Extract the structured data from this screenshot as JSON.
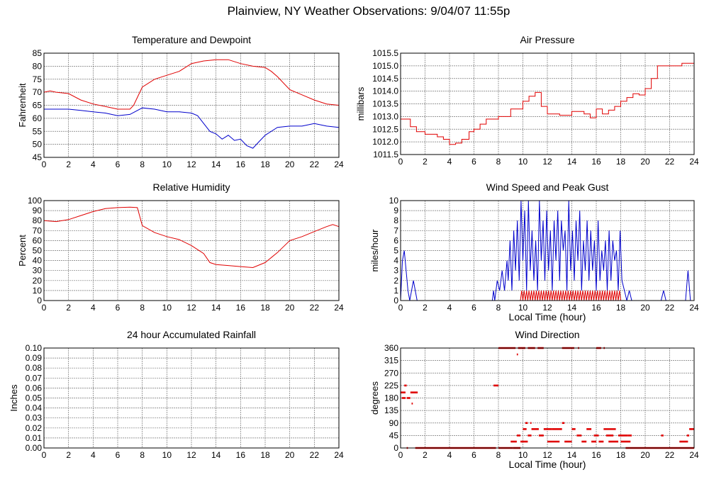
{
  "page": {
    "title": "Plainview, NY Weather Observations: 9/04/07 11:55p"
  },
  "colors": {
    "red": "#e00000",
    "blue": "#0000cc",
    "grid": "#777777"
  },
  "chart_data": [
    {
      "id": "temp",
      "type": "line",
      "title": "Temperature and Dewpoint",
      "xlabel": "",
      "ylabel": "Fahrenheit",
      "xlim": [
        0,
        24
      ],
      "ylim": [
        45,
        85
      ],
      "xticks": [
        0,
        2,
        4,
        6,
        8,
        10,
        12,
        14,
        16,
        18,
        20,
        22,
        24
      ],
      "yticks": [
        45,
        50,
        55,
        60,
        65,
        70,
        75,
        80,
        85
      ],
      "grid": true,
      "series": [
        {
          "color": "#e00000",
          "x": [
            0,
            0.5,
            1,
            2,
            3,
            4,
            5,
            6,
            7,
            7.3,
            7.6,
            8,
            9,
            10,
            11,
            12,
            13,
            14,
            15,
            16,
            17,
            18,
            18.5,
            19,
            20,
            21,
            22,
            23,
            24
          ],
          "y": [
            70,
            70.5,
            70,
            69.5,
            67,
            65.5,
            64.5,
            63.5,
            63.5,
            65,
            68,
            72,
            75,
            76.5,
            78,
            81,
            82,
            82.5,
            82.5,
            81,
            80,
            79.5,
            78,
            76,
            71,
            69,
            67,
            65.5,
            65
          ]
        },
        {
          "color": "#0000cc",
          "x": [
            0,
            1,
            2,
            3,
            4,
            5,
            6,
            7,
            8,
            9,
            10,
            11,
            12,
            12.5,
            13,
            13.5,
            14,
            14.5,
            15,
            15.5,
            16,
            16.5,
            17,
            17.5,
            18,
            19,
            20,
            21,
            22,
            23,
            24
          ],
          "y": [
            63.5,
            63.5,
            63.5,
            63,
            62.5,
            62,
            61,
            61.5,
            64,
            63.5,
            62.5,
            62.5,
            62,
            61,
            58,
            55,
            54,
            52,
            53.5,
            51.5,
            52,
            49.5,
            48.5,
            51,
            53.5,
            56.5,
            57,
            57,
            58,
            57,
            56.5
          ]
        }
      ]
    },
    {
      "id": "pressure",
      "type": "line",
      "title": "Air Pressure",
      "xlabel": "",
      "ylabel": "millibars",
      "xlim": [
        0,
        24
      ],
      "ylim": [
        1011.5,
        1015.5
      ],
      "xticks": [
        0,
        2,
        4,
        6,
        8,
        10,
        12,
        14,
        16,
        18,
        20,
        22,
        24
      ],
      "yticks": [
        "1011.5",
        "1012.0",
        "1012.5",
        "1013.0",
        "1013.5",
        "1014.0",
        "1014.5",
        "1015.0",
        "1015.5"
      ],
      "grid": true,
      "series": [
        {
          "color": "#e00000",
          "step": true,
          "x": [
            0,
            0.8,
            1.3,
            2,
            3,
            3.5,
            4,
            4.5,
            5,
            5.6,
            6,
            6.5,
            7,
            8,
            9,
            10,
            10.5,
            11,
            11.5,
            12,
            13,
            14,
            15,
            15.5,
            16,
            16.5,
            17,
            17.5,
            18,
            18.5,
            19,
            19.5,
            20,
            20.5,
            21,
            21.7,
            22,
            23,
            24
          ],
          "y": [
            1012.9,
            1012.6,
            1012.4,
            1012.3,
            1012.2,
            1012.1,
            1011.9,
            1011.95,
            1012.1,
            1012.4,
            1012.5,
            1012.7,
            1012.9,
            1013.0,
            1013.3,
            1013.6,
            1013.8,
            1013.95,
            1013.4,
            1013.1,
            1013.05,
            1013.2,
            1013.1,
            1012.95,
            1013.3,
            1013.1,
            1013.25,
            1013.4,
            1013.6,
            1013.75,
            1013.9,
            1013.85,
            1014.1,
            1014.5,
            1015.0,
            1015.0,
            1015.0,
            1015.1,
            1015.2
          ]
        }
      ]
    },
    {
      "id": "humidity",
      "type": "line",
      "title": "Relative Humidity",
      "xlabel": "",
      "ylabel": "Percent",
      "xlim": [
        0,
        24
      ],
      "ylim": [
        0,
        100
      ],
      "xticks": [
        0,
        2,
        4,
        6,
        8,
        10,
        12,
        14,
        16,
        18,
        20,
        22,
        24
      ],
      "yticks": [
        0,
        10,
        20,
        30,
        40,
        50,
        60,
        70,
        80,
        90,
        100
      ],
      "grid": true,
      "series": [
        {
          "color": "#e00000",
          "x": [
            0,
            1,
            2,
            3,
            4,
            5,
            6,
            7,
            7.6,
            8,
            9,
            10,
            11,
            12,
            13,
            13.5,
            14,
            15,
            16,
            17,
            18,
            19,
            20,
            21,
            22,
            23,
            23.5,
            24
          ],
          "y": [
            80,
            79,
            81,
            85,
            89,
            92,
            93,
            93.5,
            93,
            75,
            68,
            64,
            61,
            55,
            47,
            38,
            36,
            35,
            34,
            33,
            38,
            48,
            60,
            64,
            69,
            74,
            76,
            74
          ]
        }
      ]
    },
    {
      "id": "wind",
      "type": "line",
      "title": "Wind Speed and Peak Gust",
      "xlabel": "Local Time (hour)",
      "ylabel": "miles/hour",
      "xlim": [
        0,
        24
      ],
      "ylim": [
        0,
        10
      ],
      "xticks": [
        0,
        2,
        4,
        6,
        8,
        10,
        12,
        14,
        16,
        18,
        20,
        22,
        24
      ],
      "yticks": [
        0,
        1,
        2,
        3,
        4,
        5,
        6,
        7,
        8,
        9,
        10
      ],
      "grid": true,
      "series": [
        {
          "color": "#0000cc",
          "x": [
            0,
            0.15,
            0.3,
            0.45,
            0.6,
            0.75,
            0.9,
            1.05,
            1.2,
            1.35,
            1.5,
            7.5,
            7.6,
            7.7,
            7.9,
            8.1,
            8.3,
            8.5,
            8.7,
            8.8,
            8.95,
            9.1,
            9.25,
            9.4,
            9.55,
            9.7,
            9.85,
            10,
            10.15,
            10.3,
            10.45,
            10.6,
            10.75,
            10.9,
            11.05,
            11.2,
            11.35,
            11.5,
            11.65,
            11.8,
            11.95,
            12.1,
            12.25,
            12.4,
            12.55,
            12.7,
            12.85,
            13,
            13.15,
            13.3,
            13.45,
            13.6,
            13.75,
            13.9,
            14.05,
            14.2,
            14.35,
            14.5,
            14.65,
            14.8,
            14.95,
            15.1,
            15.25,
            15.4,
            15.55,
            15.7,
            15.85,
            16,
            16.15,
            16.3,
            16.45,
            16.6,
            16.75,
            16.9,
            17.05,
            17.2,
            17.35,
            17.5,
            17.65,
            17.8,
            17.95,
            18.1,
            18.3,
            18.5,
            18.7,
            18.9,
            19.1,
            21.3,
            21.5,
            21.7,
            23.3,
            23.5,
            23.7,
            24
          ],
          "y": [
            0,
            4,
            5,
            3,
            1,
            0,
            1,
            2,
            1,
            0,
            0,
            0,
            1,
            0,
            2,
            1,
            3,
            1,
            4,
            2,
            6,
            1,
            7,
            3,
            8,
            2,
            10,
            4,
            9,
            1,
            10,
            3,
            7,
            2,
            6,
            1,
            10,
            4,
            8,
            2,
            9,
            3,
            7,
            1,
            8,
            4,
            9,
            2,
            8,
            5,
            7,
            1,
            10,
            3,
            7,
            2,
            8,
            4,
            9,
            1,
            6,
            3,
            8,
            2,
            7,
            3,
            6,
            1,
            8,
            2,
            5,
            3,
            6,
            1,
            7,
            2,
            6,
            4,
            5,
            1,
            7,
            2,
            1,
            0,
            1,
            0,
            0,
            0,
            1,
            0,
            0,
            3,
            0,
            0
          ]
        },
        {
          "color": "#e00000",
          "x": [
            9.8,
            9.9,
            10,
            10.1,
            10.2,
            10.3,
            10.4,
            10.5,
            10.6,
            10.7,
            10.8,
            10.9,
            11,
            11.1,
            11.2,
            11.3,
            11.4,
            11.5,
            11.6,
            11.7,
            11.8,
            11.9,
            12,
            12.1,
            12.2,
            12.3,
            12.4,
            12.5,
            12.6,
            12.7,
            12.8,
            12.9,
            13,
            13.1,
            13.2,
            13.3,
            13.4,
            13.5,
            13.6,
            13.7,
            13.8,
            13.9,
            14,
            14.1,
            14.2,
            14.3,
            14.4,
            14.5,
            14.6,
            14.7,
            14.8,
            14.9,
            15,
            15.1,
            15.2,
            15.3,
            15.4,
            15.5,
            15.6,
            15.7,
            15.8,
            15.9,
            16,
            16.1,
            16.2,
            16.3,
            16.4,
            16.5,
            16.6,
            16.7,
            16.8,
            16.9,
            17,
            17.1,
            17.2,
            17.3,
            17.4,
            17.5,
            17.6,
            17.7,
            17.8,
            17.9,
            18
          ],
          "y": [
            0,
            1,
            0,
            1,
            0,
            1,
            0,
            1,
            0,
            1,
            0,
            1,
            0,
            1,
            0,
            1,
            0,
            1,
            0,
            1,
            0,
            1,
            0,
            1,
            0,
            1,
            0,
            1,
            0,
            1,
            0,
            1,
            0,
            1,
            0,
            1,
            0,
            1,
            0,
            1,
            0,
            1,
            0,
            1,
            0,
            1,
            0,
            1,
            0,
            1,
            0,
            1,
            0,
            1,
            0,
            1,
            0,
            1,
            0,
            1,
            0,
            1,
            0,
            1,
            0,
            1,
            0,
            1,
            0,
            1,
            0,
            1,
            0,
            1,
            0,
            1,
            0,
            1,
            0,
            1,
            0,
            1,
            0
          ]
        }
      ]
    },
    {
      "id": "rain",
      "type": "line",
      "title": "24 hour Accumulated Rainfall",
      "xlabel": "",
      "ylabel": "Inches",
      "xlim": [
        0,
        24
      ],
      "ylim": [
        0,
        0.1
      ],
      "xticks": [
        0,
        2,
        4,
        6,
        8,
        10,
        12,
        14,
        16,
        18,
        20,
        22,
        24
      ],
      "yticks": [
        "0.00",
        "0.01",
        "0.02",
        "0.03",
        "0.04",
        "0.05",
        "0.06",
        "0.07",
        "0.08",
        "0.09",
        "0.10"
      ],
      "grid": true,
      "series": [
        {
          "color": "#e00000",
          "x": [
            0,
            24
          ],
          "y": [
            0,
            0
          ]
        }
      ]
    },
    {
      "id": "direction",
      "type": "scatter",
      "title": "Wind Direction",
      "xlabel": "Local Time (hour)",
      "ylabel": "degrees",
      "xlim": [
        0,
        24
      ],
      "ylim": [
        0,
        360
      ],
      "xticks": [
        0,
        2,
        4,
        6,
        8,
        10,
        12,
        14,
        16,
        18,
        20,
        22,
        24
      ],
      "yticks": [
        0,
        45,
        90,
        135,
        180,
        225,
        270,
        315,
        360
      ],
      "grid": true,
      "series": [
        {
          "color": "#e00000",
          "segments": [
            [
              0,
              0.4,
              200
            ],
            [
              0.1,
              0.4,
              180
            ],
            [
              0.3,
              0.5,
              225
            ],
            [
              0.5,
              0.8,
              180
            ],
            [
              0.8,
              1.4,
              200
            ],
            [
              0.9,
              1.0,
              160
            ],
            [
              0.5,
              0.6,
              0
            ],
            [
              1.2,
              7.8,
              0
            ],
            [
              7.6,
              8.0,
              225
            ],
            [
              8.0,
              9.4,
              360
            ],
            [
              9.6,
              10.2,
              360
            ],
            [
              10.4,
              11.0,
              360
            ],
            [
              11.2,
              11.7,
              360
            ],
            [
              13.2,
              14.2,
              360
            ],
            [
              14.5,
              14.6,
              360
            ],
            [
              16.0,
              16.4,
              360
            ],
            [
              16.6,
              16.7,
              360
            ],
            [
              9.5,
              9.6,
              337
            ],
            [
              8.0,
              9.2,
              0
            ],
            [
              9.2,
              9.8,
              0
            ],
            [
              9.0,
              9.5,
              23
            ],
            [
              9.5,
              9.8,
              45
            ],
            [
              9.8,
              10.4,
              23
            ],
            [
              10.2,
              10.4,
              90
            ],
            [
              10.6,
              10.7,
              90
            ],
            [
              10.0,
              10.3,
              68
            ],
            [
              10.4,
              10.7,
              45
            ],
            [
              10.7,
              11.3,
              68
            ],
            [
              11.3,
              11.7,
              45
            ],
            [
              11.7,
              12.4,
              68
            ],
            [
              12.0,
              13.0,
              23
            ],
            [
              12.4,
              13.2,
              68
            ],
            [
              13.2,
              13.4,
              90
            ],
            [
              13.4,
              14.0,
              23
            ],
            [
              14.0,
              14.3,
              68
            ],
            [
              14.4,
              14.8,
              45
            ],
            [
              14.8,
              15.2,
              23
            ],
            [
              15.2,
              15.6,
              68
            ],
            [
              15.6,
              16.0,
              23
            ],
            [
              15.8,
              16.2,
              45
            ],
            [
              16.2,
              16.6,
              23
            ],
            [
              16.6,
              17.6,
              68
            ],
            [
              16.8,
              17.4,
              45
            ],
            [
              17.0,
              17.8,
              23
            ],
            [
              17.8,
              18.6,
              45
            ],
            [
              18.0,
              18.8,
              23
            ],
            [
              18.6,
              18.9,
              45
            ],
            [
              18.4,
              24,
              0
            ],
            [
              21.3,
              21.5,
              45
            ],
            [
              22.8,
              23.5,
              23
            ],
            [
              23.4,
              23.6,
              45
            ],
            [
              23.6,
              24,
              68
            ]
          ]
        }
      ]
    }
  ]
}
